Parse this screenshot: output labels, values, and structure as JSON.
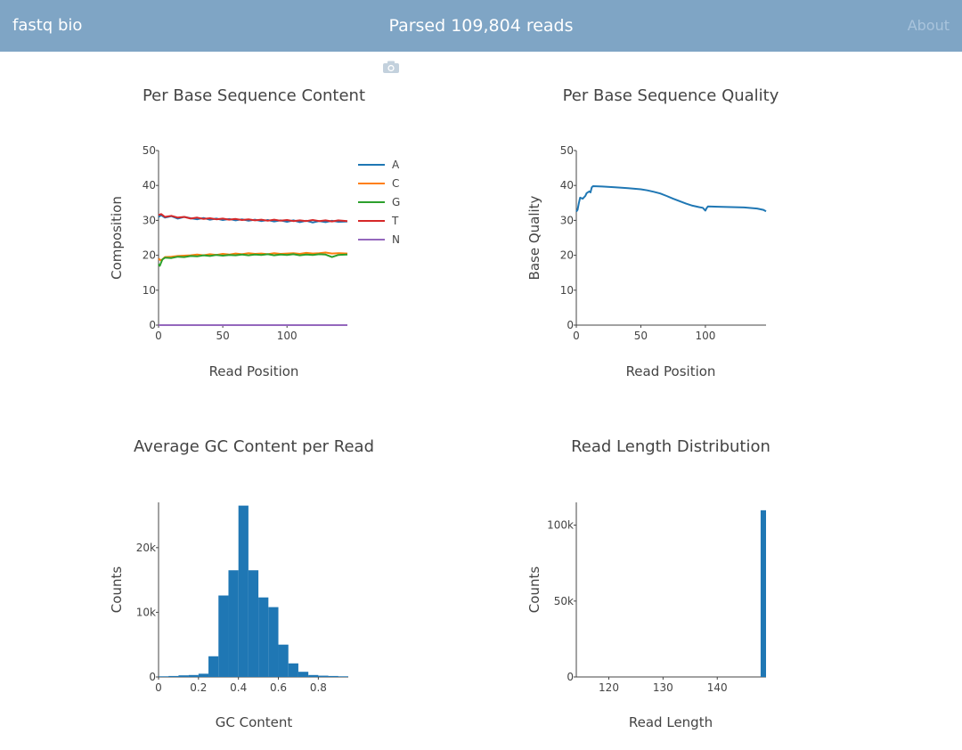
{
  "app": {
    "brand": "fastq bio",
    "status": "Parsed 109,804 reads",
    "about_label": "About"
  },
  "colors": {
    "topbar": "#7fa5c5",
    "bar": "#1f77b4",
    "A": "#1f77b4",
    "C": "#ff7f0e",
    "G": "#2ca02c",
    "T": "#d62728",
    "N": "#9467bd"
  },
  "icons": {
    "snapshot": "camera-icon"
  },
  "chart_data": [
    {
      "id": "per-base-content",
      "type": "line",
      "title": "Per Base Sequence Content",
      "xlabel": "Read Position",
      "ylabel": "Composition",
      "xlim": [
        0,
        147
      ],
      "ylim": [
        0,
        50
      ],
      "xticks": [
        0,
        50,
        100
      ],
      "yticks": [
        0,
        10,
        20,
        30,
        40,
        50
      ],
      "legend_position": "right",
      "series": [
        {
          "name": "A",
          "color": "#1f77b4",
          "points": [
            [
              0,
              31
            ],
            [
              2,
              31.5
            ],
            [
              5,
              30.8
            ],
            [
              10,
              31.2
            ],
            [
              15,
              30.5
            ],
            [
              20,
              31
            ],
            [
              25,
              30.6
            ],
            [
              30,
              30.3
            ],
            [
              35,
              30.7
            ],
            [
              40,
              30.2
            ],
            [
              45,
              30.5
            ],
            [
              50,
              30.1
            ],
            [
              55,
              30.4
            ],
            [
              60,
              30
            ],
            [
              65,
              30.3
            ],
            [
              70,
              29.9
            ],
            [
              75,
              30.2
            ],
            [
              80,
              29.8
            ],
            [
              85,
              30.1
            ],
            [
              90,
              29.7
            ],
            [
              95,
              30
            ],
            [
              100,
              29.6
            ],
            [
              105,
              30
            ],
            [
              110,
              29.5
            ],
            [
              115,
              29.9
            ],
            [
              120,
              29.4
            ],
            [
              125,
              29.8
            ],
            [
              130,
              29.5
            ],
            [
              135,
              29.9
            ],
            [
              140,
              29.6
            ],
            [
              147,
              29.7
            ]
          ]
        },
        {
          "name": "C",
          "color": "#ff7f0e",
          "points": [
            [
              0,
              19
            ],
            [
              2,
              18.5
            ],
            [
              5,
              19.5
            ],
            [
              10,
              19.6
            ],
            [
              15,
              19.8
            ],
            [
              20,
              19.9
            ],
            [
              25,
              20
            ],
            [
              30,
              20.2
            ],
            [
              35,
              20
            ],
            [
              40,
              20.3
            ],
            [
              45,
              20.1
            ],
            [
              50,
              20.4
            ],
            [
              55,
              20.2
            ],
            [
              60,
              20.5
            ],
            [
              65,
              20.3
            ],
            [
              70,
              20.6
            ],
            [
              75,
              20.4
            ],
            [
              80,
              20.5
            ],
            [
              85,
              20.3
            ],
            [
              90,
              20.6
            ],
            [
              95,
              20.4
            ],
            [
              100,
              20.5
            ],
            [
              105,
              20.6
            ],
            [
              110,
              20.4
            ],
            [
              115,
              20.7
            ],
            [
              120,
              20.5
            ],
            [
              125,
              20.6
            ],
            [
              130,
              20.8
            ],
            [
              135,
              20.5
            ],
            [
              140,
              20.6
            ],
            [
              147,
              20.5
            ]
          ]
        },
        {
          "name": "G",
          "color": "#2ca02c",
          "points": [
            [
              0,
              17.5
            ],
            [
              1,
              17
            ],
            [
              3,
              18.8
            ],
            [
              5,
              19.3
            ],
            [
              10,
              19.2
            ],
            [
              15,
              19.6
            ],
            [
              20,
              19.5
            ],
            [
              25,
              19.8
            ],
            [
              30,
              19.7
            ],
            [
              35,
              20
            ],
            [
              40,
              19.8
            ],
            [
              45,
              20.1
            ],
            [
              50,
              19.9
            ],
            [
              55,
              20.1
            ],
            [
              60,
              20
            ],
            [
              65,
              20.2
            ],
            [
              70,
              20
            ],
            [
              75,
              20.2
            ],
            [
              80,
              20.1
            ],
            [
              85,
              20.3
            ],
            [
              90,
              20
            ],
            [
              95,
              20.2
            ],
            [
              100,
              20.1
            ],
            [
              105,
              20.3
            ],
            [
              110,
              20
            ],
            [
              115,
              20.2
            ],
            [
              120,
              20.1
            ],
            [
              125,
              20.3
            ],
            [
              130,
              20.2
            ],
            [
              135,
              19.5
            ],
            [
              140,
              20.1
            ],
            [
              147,
              20.2
            ]
          ]
        },
        {
          "name": "T",
          "color": "#d62728",
          "points": [
            [
              0,
              31.5
            ],
            [
              2,
              31.8
            ],
            [
              5,
              31
            ],
            [
              10,
              31.3
            ],
            [
              15,
              30.8
            ],
            [
              20,
              31
            ],
            [
              25,
              30.5
            ],
            [
              30,
              30.8
            ],
            [
              35,
              30.4
            ],
            [
              40,
              30.6
            ],
            [
              45,
              30.3
            ],
            [
              50,
              30.5
            ],
            [
              55,
              30.2
            ],
            [
              60,
              30.4
            ],
            [
              65,
              30.1
            ],
            [
              70,
              30.3
            ],
            [
              75,
              30
            ],
            [
              80,
              30.2
            ],
            [
              85,
              29.9
            ],
            [
              90,
              30.2
            ],
            [
              95,
              29.9
            ],
            [
              100,
              30.1
            ],
            [
              105,
              29.8
            ],
            [
              110,
              30
            ],
            [
              115,
              29.8
            ],
            [
              120,
              30.1
            ],
            [
              125,
              29.8
            ],
            [
              130,
              30
            ],
            [
              135,
              29.7
            ],
            [
              140,
              30
            ],
            [
              147,
              29.8
            ]
          ]
        },
        {
          "name": "N",
          "color": "#9467bd",
          "points": [
            [
              0,
              0
            ],
            [
              147,
              0
            ]
          ]
        }
      ]
    },
    {
      "id": "per-base-quality",
      "type": "line",
      "title": "Per Base Sequence Quality",
      "xlabel": "Read Position",
      "ylabel": "Base Quality",
      "xlim": [
        0,
        147
      ],
      "ylim": [
        0,
        50
      ],
      "xticks": [
        0,
        50,
        100
      ],
      "yticks": [
        0,
        10,
        20,
        30,
        40,
        50
      ],
      "series": [
        {
          "name": "quality",
          "color": "#1f77b4",
          "points": [
            [
              0,
              32.5
            ],
            [
              1,
              33
            ],
            [
              2,
              35
            ],
            [
              3,
              36.5
            ],
            [
              5,
              36.2
            ],
            [
              7,
              37
            ],
            [
              8,
              37.8
            ],
            [
              10,
              38.3
            ],
            [
              11,
              38
            ],
            [
              12,
              39.5
            ],
            [
              13,
              39.8
            ],
            [
              20,
              39.7
            ],
            [
              30,
              39.5
            ],
            [
              40,
              39.2
            ],
            [
              50,
              38.9
            ],
            [
              55,
              38.6
            ],
            [
              60,
              38.2
            ],
            [
              65,
              37.7
            ],
            [
              70,
              37
            ],
            [
              75,
              36.2
            ],
            [
              80,
              35.5
            ],
            [
              85,
              34.8
            ],
            [
              90,
              34.2
            ],
            [
              95,
              33.8
            ],
            [
              98,
              33.6
            ],
            [
              100,
              32.8
            ],
            [
              101,
              33.5
            ],
            [
              102,
              34
            ],
            [
              110,
              33.9
            ],
            [
              120,
              33.8
            ],
            [
              130,
              33.7
            ],
            [
              140,
              33.4
            ],
            [
              145,
              33
            ],
            [
              147,
              32.6
            ]
          ]
        }
      ]
    },
    {
      "id": "gc-content",
      "type": "bar",
      "title": "Average GC Content per Read",
      "xlabel": "GC Content",
      "ylabel": "Counts",
      "xlim": [
        0,
        0.95
      ],
      "ylim": [
        0,
        27000
      ],
      "xticks": [
        0,
        0.2,
        0.4,
        0.6,
        0.8
      ],
      "xtick_labels": [
        "0",
        "0.2",
        "0.4",
        "0.6",
        "0.8"
      ],
      "yticks": [
        0,
        10000,
        20000
      ],
      "ytick_labels": [
        "0",
        "10k",
        "20k"
      ],
      "bin_width": 0.05,
      "bins": [
        0,
        0.05,
        0.1,
        0.15,
        0.2,
        0.25,
        0.3,
        0.35,
        0.4,
        0.45,
        0.5,
        0.55,
        0.6,
        0.65,
        0.7,
        0.75,
        0.8,
        0.85,
        0.9
      ],
      "values": [
        100,
        150,
        250,
        300,
        500,
        3200,
        12600,
        16500,
        26500,
        16500,
        12300,
        10800,
        5000,
        2100,
        800,
        300,
        200,
        150,
        100
      ]
    },
    {
      "id": "read-length",
      "type": "bar",
      "title": "Read Length Distribution",
      "xlabel": "Read Length",
      "ylabel": "Counts",
      "xlim": [
        114,
        149
      ],
      "ylim": [
        0,
        115000
      ],
      "xticks": [
        120,
        130,
        140
      ],
      "xtick_labels": [
        "120",
        "130",
        "140"
      ],
      "yticks": [
        0,
        50000,
        100000
      ],
      "ytick_labels": [
        "0",
        "50k",
        "100k"
      ],
      "bin_width": 1,
      "bins": [
        148
      ],
      "values": [
        109804
      ]
    }
  ]
}
